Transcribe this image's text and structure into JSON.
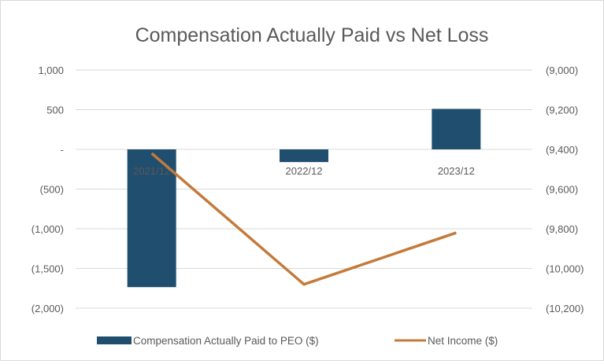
{
  "chart_data": {
    "type": "bar+line",
    "title": "Compensation Actually Paid vs Net Loss",
    "categories": [
      "2021/12",
      "2022/12",
      "2023/12"
    ],
    "series": [
      {
        "name": "Compensation Actually Paid to PEO ($)",
        "type": "bar",
        "axis": "left",
        "color": "#1f4e6e",
        "values": [
          -1735,
          -160,
          510
        ]
      },
      {
        "name": "Net Income ($)",
        "type": "line",
        "axis": "right",
        "color": "#c47a3b",
        "values": [
          -9420,
          -10080,
          -9820
        ]
      }
    ],
    "y_left": {
      "ylim": [
        -2000,
        1000
      ],
      "ticks": [
        1000,
        500,
        0,
        -500,
        -1000,
        -1500,
        -2000
      ],
      "tick_labels": [
        "1,000",
        "500",
        "-",
        "(500)",
        "(1,000)",
        "(1,500)",
        "(2,000)"
      ]
    },
    "y_right": {
      "ylim": [
        -10200,
        -9000
      ],
      "ticks": [
        -9000,
        -9200,
        -9400,
        -9600,
        -9800,
        -10000,
        -10200
      ],
      "tick_labels": [
        "(9,000)",
        "(9,200)",
        "(9,400)",
        "(9,600)",
        "(9,800)",
        "(10,000)",
        "(10,200)"
      ]
    },
    "grid": true,
    "legend_position": "bottom"
  }
}
